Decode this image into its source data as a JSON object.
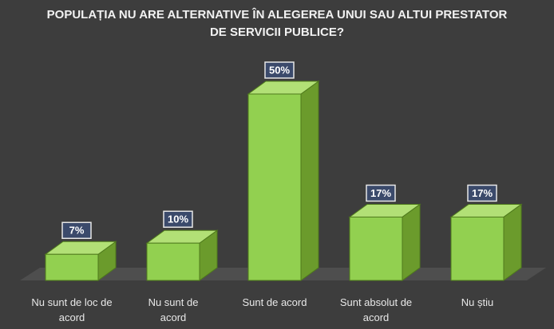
{
  "chart_data": {
    "type": "bar3d",
    "title": "POPULAȚIA NU ARE ALTERNATIVE ÎN ALEGEREA UNUI SAU ALTUI PRESTATOR DE SERVICII PUBLICE?",
    "categories": [
      "Nu sunt de loc de acord",
      "Nu sunt de acord",
      "Sunt de acord",
      "Sunt absolut de acord",
      "Nu știu"
    ],
    "values": [
      7,
      10,
      50,
      17,
      17
    ],
    "value_labels": [
      "7%",
      "10%",
      "50%",
      "17%",
      "17%"
    ],
    "color": "#92d050"
  }
}
